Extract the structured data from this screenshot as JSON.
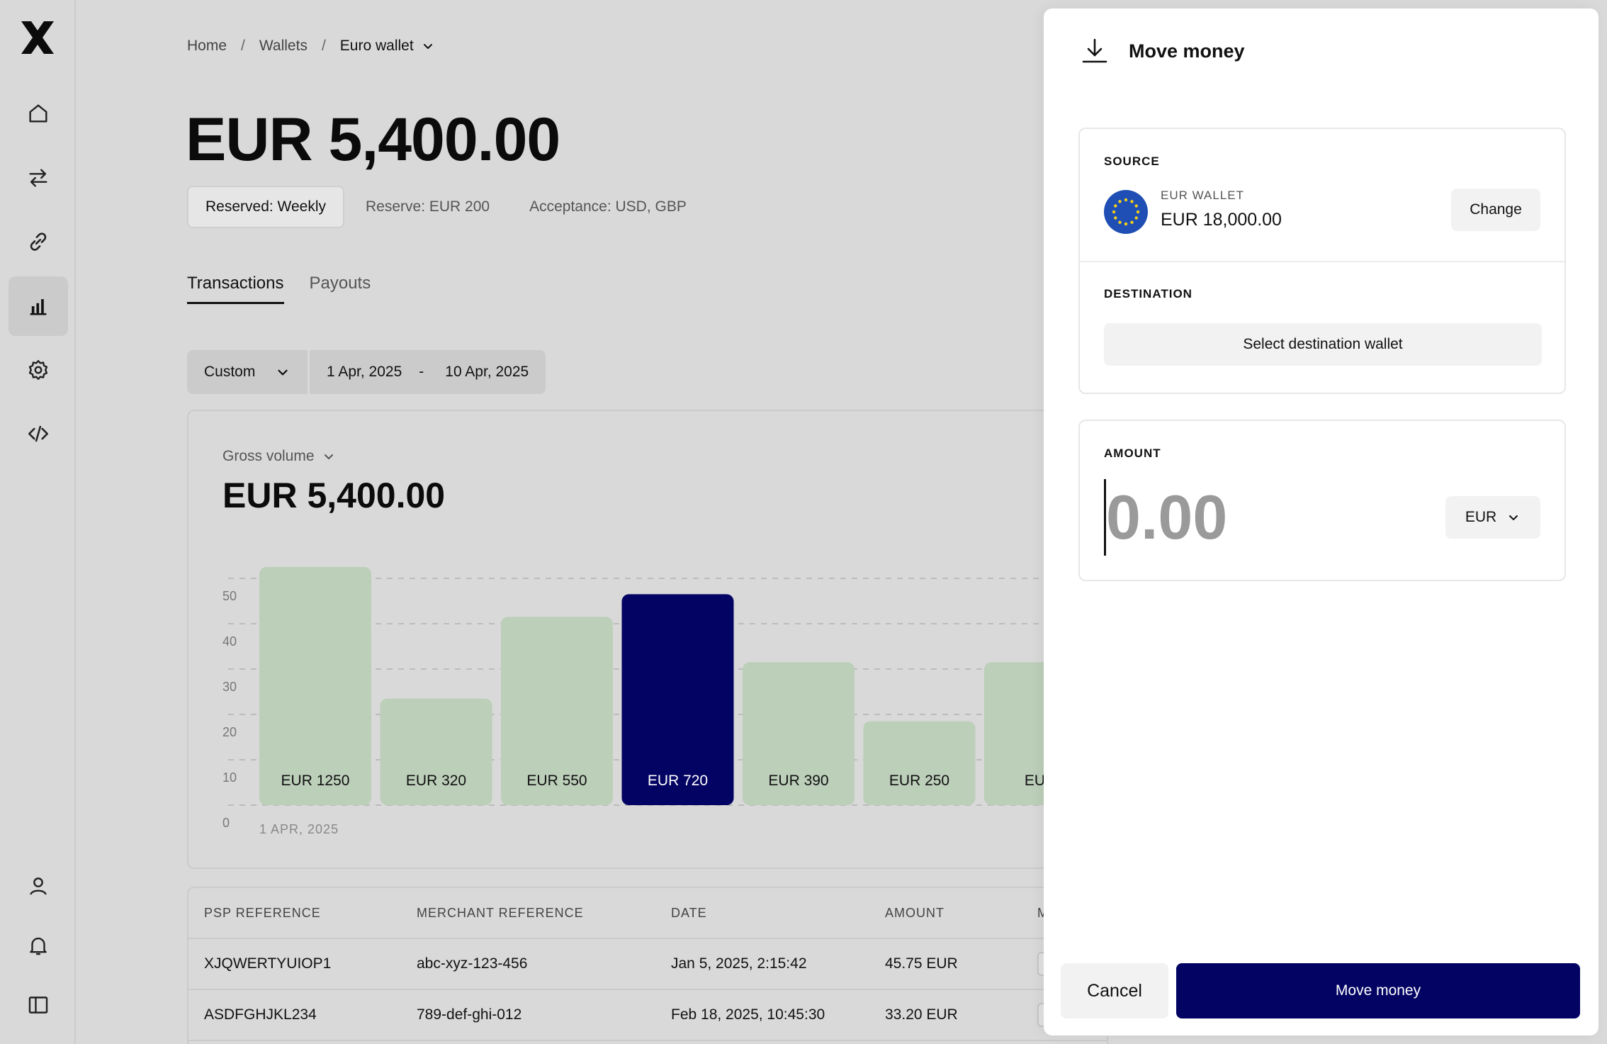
{
  "sidebar": {
    "logo": "x-logo",
    "items": [
      {
        "icon": "home-icon"
      },
      {
        "icon": "transfer-arrows-icon"
      },
      {
        "icon": "link-icon"
      },
      {
        "icon": "bar-chart-icon",
        "active": true
      },
      {
        "icon": "gear-icon"
      },
      {
        "icon": "code-icon"
      },
      {
        "icon": "user-icon"
      },
      {
        "icon": "bell-icon"
      },
      {
        "icon": "sidebar-toggle-icon"
      }
    ]
  },
  "breadcrumb": {
    "home": "Home",
    "sep": "/",
    "wallets": "Wallets",
    "current": "Euro wallet"
  },
  "balance": "EUR 5,400.00",
  "chips": {
    "reserved": "Reserved: Weekly",
    "reserve": "Reserve: EUR 200",
    "acceptance": "Acceptance: USD, GBP"
  },
  "tabs": {
    "transactions": "Transactions",
    "payouts": "Payouts"
  },
  "filters": {
    "range": "Custom",
    "start": "1 Apr, 2025",
    "dash": "-",
    "end": "10 Apr, 2025"
  },
  "chart": {
    "label": "Gross volume",
    "total": "EUR 5,400.00"
  },
  "chart_data": {
    "type": "bar",
    "ylim": [
      0,
      50
    ],
    "yticks": [
      "0",
      "10",
      "20",
      "30",
      "40",
      "50"
    ],
    "x_start_label": "1 APR, 2025",
    "grid": true,
    "values": [
      50,
      21,
      39,
      44,
      29,
      16,
      29
    ],
    "bar_labels": [
      "EUR 1250",
      "EUR 320",
      "EUR 550",
      "EUR 720",
      "EUR 390",
      "EUR 250",
      "EUR"
    ],
    "highlight_index": 3,
    "colors": {
      "bar": "#bccfb9",
      "highlight": "#030363",
      "grid": "#bcbcbc"
    }
  },
  "table": {
    "headers": [
      "PSP REFERENCE",
      "MERCHANT REFERENCE",
      "DATE",
      "AMOUNT",
      "M"
    ],
    "rows": [
      [
        "XJQWERTYUIOP1",
        "abc-xyz-123-456",
        "Jan 5, 2025, 2:15:42",
        "45.75 EUR"
      ],
      [
        "ASDFGHJKL234",
        "789-def-ghi-012",
        "Feb 18, 2025, 10:45:30",
        "33.20 EUR"
      ]
    ]
  },
  "panel": {
    "title": "Move money",
    "source_label": "SOURCE",
    "wallet_name": "EUR WALLET",
    "wallet_balance": "EUR 18,000.00",
    "change": "Change",
    "destination_label": "DESTINATION",
    "select_destination": "Select destination wallet",
    "amount_label": "AMOUNT",
    "amount_placeholder": "0.00",
    "currency": "EUR",
    "cancel": "Cancel",
    "submit": "Move money"
  }
}
